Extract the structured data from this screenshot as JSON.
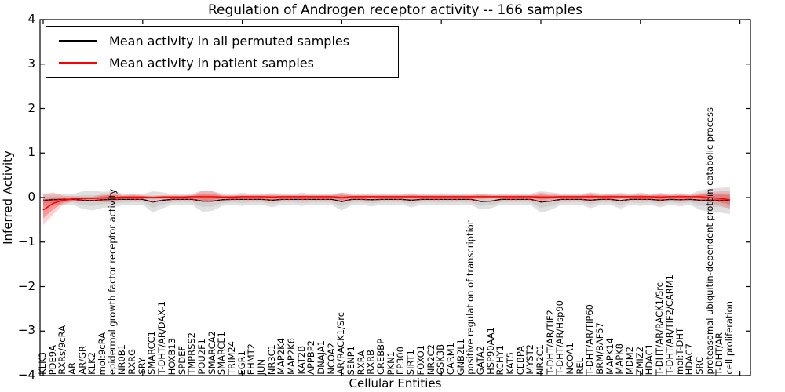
{
  "figure": {
    "title": "Regulation of Androgen receptor activity -- 166 samples",
    "xlabel": "Cellular Entities",
    "ylabel": "Inferred Activity"
  },
  "chart_data": {
    "type": "line",
    "title": "Regulation of Androgen receptor activity -- 166 samples",
    "xlabel": "Cellular Entities",
    "ylabel": "Inferred Activity",
    "ylim": [
      -4,
      4
    ],
    "yticks": [
      4,
      3,
      2,
      1,
      0,
      -1,
      -2,
      -3,
      -4
    ],
    "ytick_labels": [
      "4",
      "3",
      "2",
      "1",
      "0",
      "−1",
      "−2",
      "−3",
      "−4"
    ],
    "xtick_index_step": 10,
    "grid": false,
    "legend_position": "upper left",
    "legend": [
      {
        "label": "Mean activity in all permuted samples",
        "color": "#000000",
        "style": "solid"
      },
      {
        "label": "Mean activity in patient samples",
        "color": "#ff0000",
        "style": "solid"
      }
    ],
    "dotted_overlay": {
      "color": "#ff0000",
      "style": "dotted",
      "follows": "Mean activity in all permuted samples"
    },
    "band_colors": {
      "permuted_outer": "rgba(0,0,0,0.12)",
      "permuted_inner": "rgba(0,0,0,0.07)",
      "patient_outer": "rgba(255,45,45,0.22)",
      "patient_inner": "rgba(235,35,35,0.32)"
    },
    "categories": [
      "KLK3",
      "PDE9A",
      "RXRs/9cRA",
      "AR",
      "AR/GR",
      "KLK2",
      "mol:9cRA",
      "epidermal growth factor receptor activity",
      "NR0B1",
      "RXRG",
      "SRY",
      "SMARCC1",
      "T-DHT/AR/DAX-1",
      "HOXB13",
      "SPDEF",
      "TMPRSS2",
      "POU2F1",
      "SMARCA2",
      "SMARCE1",
      "TRIM24",
      "EGR1",
      "EHMT2",
      "JUN",
      "NR3C1",
      "MAP2K4",
      "MAP2K6",
      "KAT2B",
      "APPBP2",
      "DNAJA1",
      "NCOA2",
      "AR/RACK1/Src",
      "SENP1",
      "RXRA",
      "RXRB",
      "CREBBP",
      "PKN1",
      "EP300",
      "SIRT1",
      "FOXO1",
      "NR2C2",
      "GSK3B",
      "CARM1",
      "GNB2L1",
      "positive regulation of transcription",
      "GATA2",
      "HSP90AA1",
      "RCHY1",
      "KAT5",
      "CEBPA",
      "MYST2",
      "NR2C1",
      "T-DHT/AR/TIF2",
      "T-DHT/AR/Hsp90",
      "NCOA1",
      "REL",
      "T-DHT/AR/TIP60",
      "BRM/BAF57",
      "MAPK14",
      "MAPK8",
      "MDM2",
      "ZMIZ2",
      "HDAC1",
      "T-DHT/AR/RACK1/Src",
      "T-DHT/AR/TIF2/CARM1",
      "mol:T-DHT",
      "HDAC7",
      "SRC",
      "proteasomal ubiquitin-dependent protein catabolic process",
      "T-DHT/AR",
      "cell proliferation"
    ],
    "series": [
      {
        "name": "Mean activity in all permuted samples",
        "color": "#000000",
        "style": "solid",
        "values": [
          -0.06,
          -0.05,
          -0.04,
          -0.04,
          -0.06,
          -0.07,
          -0.05,
          -0.04,
          -0.04,
          -0.04,
          -0.04,
          -0.1,
          -0.06,
          -0.04,
          -0.04,
          -0.04,
          -0.08,
          -0.08,
          -0.05,
          -0.04,
          -0.04,
          -0.04,
          -0.04,
          -0.06,
          -0.04,
          -0.04,
          -0.04,
          -0.04,
          -0.04,
          -0.04,
          -0.09,
          -0.04,
          -0.04,
          -0.05,
          -0.04,
          -0.04,
          -0.04,
          -0.06,
          -0.04,
          -0.04,
          -0.04,
          -0.04,
          -0.04,
          -0.04,
          -0.09,
          -0.08,
          -0.04,
          -0.04,
          -0.04,
          -0.04,
          -0.1,
          -0.08,
          -0.04,
          -0.04,
          -0.04,
          -0.06,
          -0.04,
          -0.04,
          -0.07,
          -0.04,
          -0.04,
          -0.04,
          -0.06,
          -0.04,
          -0.05,
          -0.04,
          -0.06,
          -0.06,
          -0.06,
          -0.07
        ],
        "std": [
          0.14,
          0.13,
          0.12,
          0.12,
          0.2,
          0.22,
          0.18,
          0.18,
          0.13,
          0.12,
          0.12,
          0.24,
          0.18,
          0.12,
          0.12,
          0.13,
          0.24,
          0.22,
          0.14,
          0.12,
          0.15,
          0.12,
          0.12,
          0.16,
          0.12,
          0.12,
          0.15,
          0.12,
          0.12,
          0.13,
          0.2,
          0.13,
          0.12,
          0.15,
          0.12,
          0.12,
          0.12,
          0.16,
          0.12,
          0.12,
          0.14,
          0.12,
          0.12,
          0.13,
          0.18,
          0.16,
          0.12,
          0.12,
          0.12,
          0.13,
          0.24,
          0.2,
          0.13,
          0.12,
          0.12,
          0.18,
          0.13,
          0.12,
          0.18,
          0.12,
          0.15,
          0.12,
          0.16,
          0.12,
          0.15,
          0.12,
          0.22,
          0.26,
          0.28,
          0.3
        ]
      },
      {
        "name": "Mean activity in patient samples",
        "color": "#ff0000",
        "style": "solid",
        "values": [
          -0.28,
          -0.13,
          -0.06,
          -0.03,
          -0.02,
          -0.02,
          -0.01,
          0.0,
          0.01,
          0.01,
          0.01,
          0.0,
          0.01,
          0.01,
          0.01,
          0.02,
          0.02,
          0.02,
          0.01,
          0.01,
          0.02,
          0.02,
          0.02,
          0.01,
          0.02,
          0.02,
          0.02,
          0.02,
          0.02,
          0.02,
          0.0,
          0.02,
          0.02,
          0.02,
          0.02,
          0.02,
          0.02,
          0.02,
          0.02,
          0.02,
          0.02,
          0.02,
          0.02,
          0.02,
          0.02,
          0.02,
          0.02,
          0.02,
          0.02,
          0.02,
          0.01,
          0.01,
          0.02,
          0.02,
          0.02,
          0.02,
          0.02,
          0.02,
          0.02,
          0.02,
          0.02,
          0.02,
          0.01,
          0.02,
          0.02,
          0.02,
          0.02,
          0.0,
          -0.02,
          -0.05
        ],
        "std": [
          0.34,
          0.25,
          0.1,
          0.06,
          0.04,
          0.04,
          0.09,
          0.11,
          0.04,
          0.06,
          0.04,
          0.04,
          0.04,
          0.04,
          0.04,
          0.04,
          0.13,
          0.12,
          0.05,
          0.04,
          0.04,
          0.04,
          0.04,
          0.06,
          0.04,
          0.04,
          0.04,
          0.04,
          0.04,
          0.04,
          0.11,
          0.04,
          0.04,
          0.04,
          0.04,
          0.04,
          0.04,
          0.05,
          0.04,
          0.04,
          0.04,
          0.04,
          0.04,
          0.04,
          0.06,
          0.04,
          0.04,
          0.04,
          0.04,
          0.04,
          0.1,
          0.07,
          0.04,
          0.04,
          0.04,
          0.08,
          0.04,
          0.06,
          0.05,
          0.04,
          0.06,
          0.04,
          0.09,
          0.04,
          0.06,
          0.04,
          0.08,
          0.12,
          0.16,
          0.2
        ]
      }
    ]
  }
}
